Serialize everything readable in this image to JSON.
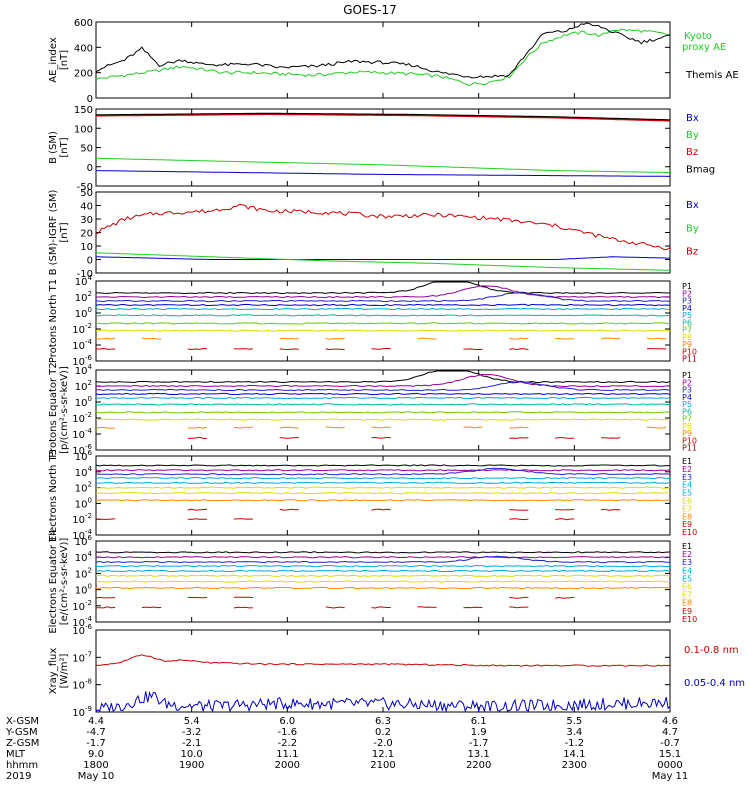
{
  "title": "GOES-17",
  "colors": {
    "black": "#000000",
    "green": "#22cc22",
    "blue": "#0000cc",
    "red": "#cc0000",
    "darkred": "#880000",
    "purple": "#990099",
    "navy": "#2222cc",
    "cyan": "#00aadd",
    "teal": "#00bb99",
    "lime": "#66cc00",
    "yellow": "#dddd00",
    "orange": "#ff8800"
  },
  "chart_data": [
    {
      "type": "line",
      "ylabel": "AE_index [nT]",
      "ylim": [
        0,
        600
      ],
      "yticks": [
        "0",
        "200",
        "400",
        "600"
      ],
      "series": [
        {
          "name": "Kyoto proxy AE",
          "color": "#22cc22",
          "x": [
            0,
            5,
            10,
            15,
            18,
            22,
            27,
            32,
            38,
            45,
            50,
            55,
            60,
            65,
            68,
            72,
            75,
            78,
            82,
            85,
            88,
            90,
            95,
            100
          ],
          "y": [
            150,
            180,
            210,
            250,
            230,
            200,
            200,
            190,
            180,
            205,
            200,
            190,
            170,
            110,
            120,
            170,
            320,
            440,
            500,
            520,
            490,
            540,
            530,
            500
          ]
        },
        {
          "name": "Themis AE",
          "color": "#000000",
          "x": [
            0,
            5,
            8,
            11,
            15,
            18,
            22,
            27,
            32,
            38,
            45,
            50,
            55,
            60,
            65,
            68,
            72,
            75,
            78,
            82,
            85,
            88,
            90,
            95,
            100
          ],
          "y": [
            220,
            300,
            390,
            260,
            300,
            270,
            260,
            270,
            240,
            250,
            290,
            280,
            260,
            200,
            170,
            170,
            180,
            350,
            510,
            530,
            590,
            560,
            520,
            440,
            490
          ]
        }
      ],
      "legend": [
        "Kyoto proxy AE",
        "Themis AE"
      ]
    },
    {
      "type": "line",
      "ylabel": "B (SM) [nT]",
      "ylim": [
        -50,
        150
      ],
      "yticks": [
        "-50",
        "0",
        "50",
        "100",
        "150"
      ],
      "series": [
        {
          "name": "Bx",
          "color": "#0000cc",
          "x": [
            0,
            50,
            100
          ],
          "y": [
            -10,
            -20,
            -25
          ]
        },
        {
          "name": "By",
          "color": "#22cc22",
          "x": [
            0,
            20,
            50,
            80,
            100
          ],
          "y": [
            22,
            15,
            5,
            -10,
            -15
          ]
        },
        {
          "name": "Bz",
          "color": "#cc0000",
          "x": [
            0,
            30,
            55,
            80,
            100
          ],
          "y": [
            133,
            137,
            134,
            128,
            120
          ]
        },
        {
          "name": "Bmag",
          "color": "#000000",
          "x": [
            0,
            30,
            55,
            80,
            100
          ],
          "y": [
            135,
            139,
            136,
            130,
            122
          ]
        }
      ],
      "legend": [
        "Bx",
        "By",
        "Bz",
        "Bmag"
      ]
    },
    {
      "type": "line",
      "ylabel": "B (SM)-IGRF (SM) [nT]",
      "ylim": [
        -10,
        50
      ],
      "yticks": [
        "-10",
        "0",
        "10",
        "20",
        "30",
        "40",
        "50"
      ],
      "series": [
        {
          "name": "Bx",
          "color": "#0000cc",
          "x": [
            0,
            20,
            40,
            60,
            80,
            90,
            100
          ],
          "y": [
            2,
            0,
            0,
            0,
            0,
            2,
            1
          ]
        },
        {
          "name": "By",
          "color": "#22cc22",
          "x": [
            0,
            20,
            40,
            60,
            80,
            100
          ],
          "y": [
            5,
            2,
            -1,
            -3,
            -6,
            -8
          ]
        },
        {
          "name": "Bz",
          "color": "#cc0000",
          "x": [
            0,
            5,
            10,
            20,
            25,
            30,
            40,
            50,
            60,
            70,
            80,
            90,
            100
          ],
          "y": [
            20,
            30,
            34,
            36,
            40,
            36,
            35,
            32,
            33,
            30,
            25,
            15,
            8
          ]
        }
      ],
      "legend": [
        "Bx",
        "By",
        "Bz"
      ]
    },
    {
      "type": "line",
      "ylabel": "Protons North T1",
      "log": true,
      "ylim_exp": [
        -6,
        4
      ],
      "ytick_exps": [
        -6,
        -4,
        -2,
        0,
        2,
        4
      ],
      "legend": [
        "P1",
        "P2",
        "P3",
        "P4",
        "P5",
        "P6",
        "P7",
        "P8",
        "P9",
        "P10",
        "P11"
      ]
    },
    {
      "type": "line",
      "ylabel": "Protons Equator T2 [p/(cm²-s-sr-keV)]",
      "log": true,
      "ylim_exp": [
        -6,
        4
      ],
      "ytick_exps": [
        -6,
        -4,
        -2,
        0,
        2,
        4
      ],
      "legend": [
        "P1",
        "P2",
        "P3",
        "P4",
        "P5",
        "P6",
        "P7",
        "P8",
        "P9",
        "P10",
        "P11"
      ]
    },
    {
      "type": "line",
      "ylabel": "Electrons North T3",
      "log": true,
      "ylim_exp": [
        -4,
        6
      ],
      "ytick_exps": [
        -4,
        -2,
        0,
        2,
        4,
        6
      ],
      "legend": [
        "E1",
        "E2",
        "E3",
        "E4",
        "E5",
        "E6",
        "E7",
        "E8",
        "E9",
        "E10"
      ]
    },
    {
      "type": "line",
      "ylabel": "Electrons Equator T4 [e/(cm²-s-sr-keV)]",
      "log": true,
      "ylim_exp": [
        -4,
        6
      ],
      "ytick_exps": [
        -4,
        -2,
        0,
        2,
        4,
        6
      ],
      "legend": [
        "E1",
        "E2",
        "E3",
        "E4",
        "E5",
        "E6",
        "E7",
        "E8",
        "E9",
        "E10"
      ]
    },
    {
      "type": "line",
      "ylabel": "Xray_flux [W/m²]",
      "log": true,
      "ylim_exp": [
        -9,
        -6
      ],
      "ytick_exps": [
        -9,
        -8,
        -7,
        -6
      ],
      "series": [
        {
          "name": "0.1-0.8 nm",
          "color": "#cc0000",
          "x": [
            0,
            4,
            8,
            10,
            12,
            15,
            20,
            30,
            50,
            70,
            100
          ],
          "y_exp": [
            -7.3,
            -7.2,
            -6.9,
            -7.0,
            -7.15,
            -7.1,
            -7.2,
            -7.25,
            -7.25,
            -7.3,
            -7.3
          ]
        },
        {
          "name": "0.05-0.4 nm",
          "color": "#0000cc",
          "x": [
            0,
            4,
            8,
            10,
            12,
            15,
            20,
            30,
            50,
            70,
            100
          ],
          "y_exp": [
            -8.9,
            -8.8,
            -8.5,
            -8.4,
            -8.7,
            -8.75,
            -8.8,
            -8.7,
            -8.7,
            -8.8,
            -8.65
          ]
        }
      ],
      "legend": [
        "0.1-0.8 nm",
        "0.05-0.4 nm"
      ]
    }
  ],
  "x_axis": {
    "row_labels": [
      "X-GSM",
      "Y-GSM",
      "Z-GSM",
      "MLT",
      "hhmm",
      "2019"
    ],
    "columns": [
      {
        "xgsm": "4.4",
        "ygsm": "-4.7",
        "zgsm": "-1.7",
        "mlt": "9.0",
        "hhmm": "1800",
        "date": "May 10"
      },
      {
        "xgsm": "5.4",
        "ygsm": "-3.2",
        "zgsm": "-2.1",
        "mlt": "10.0",
        "hhmm": "1900",
        "date": ""
      },
      {
        "xgsm": "6.0",
        "ygsm": "-1.6",
        "zgsm": "-2.2",
        "mlt": "11.1",
        "hhmm": "2000",
        "date": ""
      },
      {
        "xgsm": "6.3",
        "ygsm": "0.2",
        "zgsm": "-2.0",
        "mlt": "12.1",
        "hhmm": "2100",
        "date": ""
      },
      {
        "xgsm": "6.1",
        "ygsm": "1.9",
        "zgsm": "-1.7",
        "mlt": "13.1",
        "hhmm": "2200",
        "date": ""
      },
      {
        "xgsm": "5.5",
        "ygsm": "3.4",
        "zgsm": "-1.2",
        "mlt": "14.1",
        "hhmm": "2300",
        "date": ""
      },
      {
        "xgsm": "4.6",
        "ygsm": "4.7",
        "zgsm": "-0.7",
        "mlt": "15.1",
        "hhmm": "0000",
        "date": "May 11"
      }
    ]
  }
}
